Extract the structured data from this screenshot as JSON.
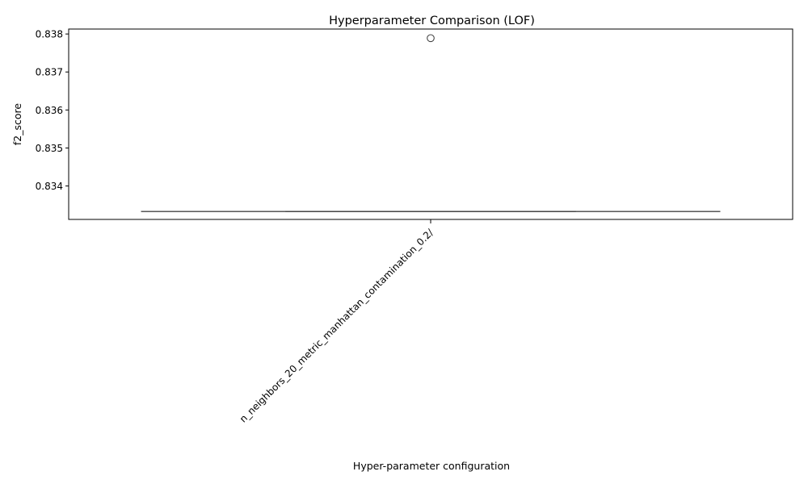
{
  "chart_data": {
    "type": "box",
    "title": "Hyperparameter Comparison (LOF)",
    "xlabel": "Hyper-parameter configuration",
    "ylabel": "f2_score",
    "categories": [
      "n_neighbors_20_metric_manhattan_contamination_0.2/"
    ],
    "boxes": [
      {
        "category": "n_neighbors_20_metric_manhattan_contamination_0.2/",
        "min": 0.83333,
        "q1": 0.83333,
        "median": 0.83333,
        "q3": 0.83333,
        "max": 0.83333,
        "outliers": [
          0.83789
        ]
      }
    ],
    "y_ticks": [
      "0.834",
      "0.835",
      "0.836",
      "0.837",
      "0.838"
    ],
    "ylim": [
      0.83312,
      0.83813
    ],
    "grid": false,
    "colors": {
      "box": "#444444",
      "axes": "#000000"
    }
  }
}
